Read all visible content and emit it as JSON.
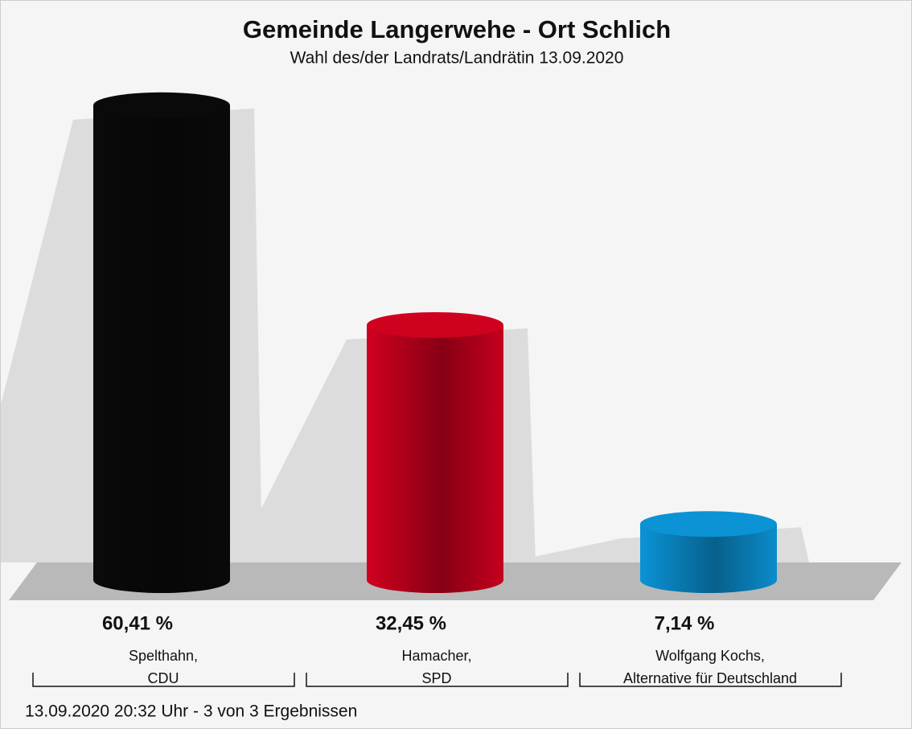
{
  "chart_data": {
    "type": "bar",
    "title": "Gemeinde Langerwehe - Ort Schlich",
    "subtitle": "Wahl des/der Landrats/Landrätin 13.09.2020",
    "categories": [
      "Spelthahn,\nCDU",
      "Hamacher,\nSPD",
      "Wolfgang Kochs,\nAlternative für Deutschland"
    ],
    "values": [
      60.41,
      32.45,
      7.14
    ],
    "value_labels": [
      "60,41 %",
      "32,45 %",
      "7,14 %"
    ],
    "colors": [
      "#0a0a0a",
      "#d0001f",
      "#0b93d6"
    ],
    "footer": "13.09.2020 20:32 Uhr - 3 von 3 Ergebnissen"
  }
}
